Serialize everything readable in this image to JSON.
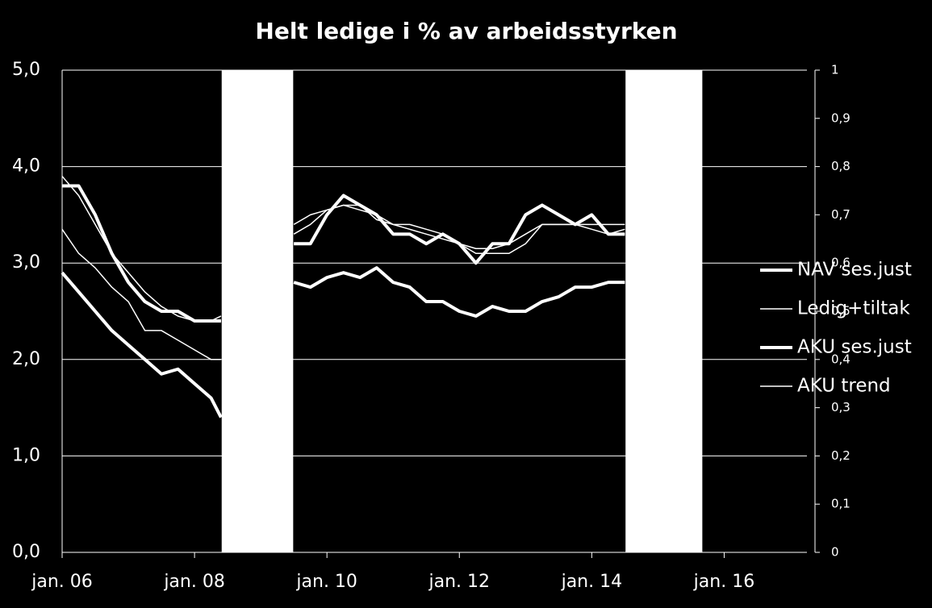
{
  "chart_data": {
    "type": "line",
    "title": "Helt ledige i % av arbeidsstyrken",
    "x": [
      2006,
      2006.25,
      2006.5,
      2006.75,
      2007,
      2007.25,
      2007.5,
      2007.75,
      2008,
      2008.25,
      2008.4,
      2009,
      2009.5,
      2009.75,
      2010,
      2010.25,
      2010.5,
      2010.75,
      2011,
      2011.25,
      2011.5,
      2011.75,
      2012,
      2012.25,
      2012.5,
      2012.75,
      2013,
      2013.25,
      2013.5,
      2013.75,
      2014,
      2014.25,
      2014.5
    ],
    "series": [
      {
        "name": "NAV ses.just",
        "color": "#ffffff",
        "width": 4,
        "values": [
          2.9,
          2.7,
          2.5,
          2.3,
          2.15,
          2.0,
          1.85,
          1.9,
          1.75,
          1.6,
          1.4,
          null,
          2.8,
          2.75,
          2.85,
          2.9,
          2.85,
          2.95,
          2.8,
          2.75,
          2.6,
          2.6,
          2.5,
          2.45,
          2.55,
          2.5,
          2.5,
          2.6,
          2.65,
          2.75,
          2.75,
          2.8,
          2.8
        ]
      },
      {
        "name": "Ledig+tiltak",
        "color": "#ffffff",
        "width": 1.5,
        "values": [
          3.35,
          3.1,
          2.95,
          2.75,
          2.6,
          2.3,
          2.3,
          2.2,
          2.1,
          2.0,
          2.0,
          null,
          3.4,
          3.5,
          3.55,
          3.6,
          3.6,
          3.45,
          3.4,
          3.4,
          3.35,
          3.3,
          3.2,
          3.1,
          3.1,
          3.1,
          3.2,
          3.4,
          3.4,
          3.4,
          3.4,
          3.4,
          3.4
        ]
      },
      {
        "name": "AKU ses.just",
        "color": "#ffffff",
        "width": 4,
        "values": [
          3.8,
          3.8,
          3.5,
          3.1,
          2.8,
          2.6,
          2.5,
          2.5,
          2.4,
          2.4,
          2.4,
          null,
          3.2,
          3.2,
          3.5,
          3.7,
          3.6,
          3.5,
          3.3,
          3.3,
          3.2,
          3.3,
          3.2,
          3.0,
          3.2,
          3.2,
          3.5,
          3.6,
          3.5,
          3.4,
          3.5,
          3.3,
          3.3
        ]
      },
      {
        "name": "AKU trend",
        "color": "#ffffff",
        "width": 1.5,
        "values": [
          3.9,
          3.7,
          3.4,
          3.1,
          2.9,
          2.7,
          2.55,
          2.45,
          2.4,
          2.4,
          2.45,
          null,
          3.3,
          3.4,
          3.55,
          3.6,
          3.55,
          3.5,
          3.4,
          3.35,
          3.3,
          3.25,
          3.2,
          3.15,
          3.15,
          3.2,
          3.3,
          3.4,
          3.4,
          3.4,
          3.35,
          3.3,
          3.35
        ]
      }
    ],
    "bands": [
      [
        2008.41,
        2009.49
      ],
      [
        2014.51,
        2015.67
      ]
    ],
    "band_color": "#ffffff",
    "xlim": [
      2006,
      2017.25
    ],
    "xticks": [
      {
        "value": 2006,
        "label": "jan. 06"
      },
      {
        "value": 2008,
        "label": "jan. 08"
      },
      {
        "value": 2010,
        "label": "jan. 10"
      },
      {
        "value": 2012,
        "label": "jan. 12"
      },
      {
        "value": 2014,
        "label": "jan. 14"
      },
      {
        "value": 2016,
        "label": "jan. 16"
      }
    ],
    "ylim": [
      0,
      5
    ],
    "yticks": [
      {
        "value": 0,
        "label": "0,0"
      },
      {
        "value": 1,
        "label": "1,0"
      },
      {
        "value": 2,
        "label": "2,0"
      },
      {
        "value": 3,
        "label": "3,0"
      },
      {
        "value": 4,
        "label": "4,0"
      },
      {
        "value": 5,
        "label": "5,0"
      }
    ],
    "y2lim": [
      0,
      1
    ],
    "y2ticks": [
      0,
      {
        "value": 0.1,
        "label": "0,1"
      },
      {
        "value": 0.2,
        "label": "0,2"
      },
      {
        "value": 0.3,
        "label": "0,3"
      },
      {
        "value": 0.4,
        "label": "0,4"
      },
      {
        "value": 0.5,
        "label": "0,5"
      },
      {
        "value": 0.6,
        "label": "0,6"
      },
      {
        "value": 0.7,
        "label": "0,7"
      },
      {
        "value": 0.8,
        "label": "0,8"
      },
      {
        "value": 0.9,
        "label": "0,9"
      },
      1
    ],
    "grid": true,
    "legend": "right"
  }
}
